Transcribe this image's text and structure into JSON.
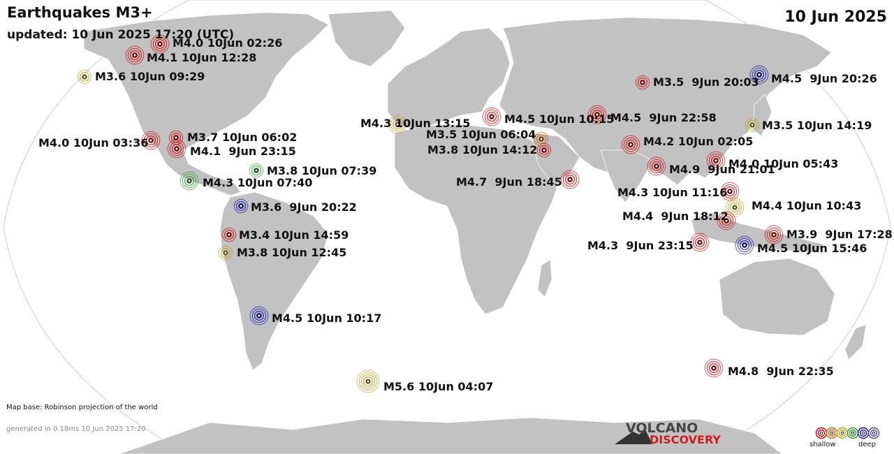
{
  "header": {
    "title": "Earthquakes M3+",
    "updated": "updated: 10 Jun 2025 17:20 (UTC)",
    "date": "10 Jun 2025"
  },
  "footer": {
    "map_base": "Map base: Robinson projection of the world",
    "generated": "generated in 0.18ms 10 Jun 2025 17:20",
    "logo_line1": "VOLCANO",
    "logo_line2": "DISCOVERY",
    "legend_shallow": "shallow",
    "legend_deep": "deep"
  },
  "colors": {
    "ocean": "#ffffff",
    "land": "#c2c2c2",
    "shallow": "#cc0000",
    "mid": "#b5a020",
    "green": "#2a9a2a",
    "deep": "#1010aa",
    "legend": [
      "#cc0000",
      "#d06010",
      "#b5a020",
      "#2a9a2a",
      "#1010aa",
      "#5040a0"
    ]
  },
  "earthquakes": [
    {
      "label": "M4.0 10Jun 02:26",
      "color": "#cc0000",
      "magnitude": 4.0
    },
    {
      "label": "M4.1 10Jun 12:28",
      "color": "#cc0000",
      "magnitude": 4.1
    },
    {
      "label": "M3.6 10Jun 09:29",
      "color": "#b5a020",
      "magnitude": 3.6
    },
    {
      "label": "M4.0 10Jun 03:36",
      "color": "#cc0000",
      "magnitude": 4.0
    },
    {
      "label": "M3.7 10Jun 06:02",
      "color": "#cc0000",
      "magnitude": 3.7
    },
    {
      "label": "M4.1  9Jun 23:15",
      "color": "#cc0000",
      "magnitude": 4.1
    },
    {
      "label": "M3.8 10Jun 07:39",
      "color": "#2a9a2a",
      "magnitude": 3.8
    },
    {
      "label": "M4.3 10Jun 07:40",
      "color": "#2a9a2a",
      "magnitude": 4.3
    },
    {
      "label": "M3.6  9Jun 20:22",
      "color": "#1010aa",
      "magnitude": 3.6
    },
    {
      "label": "M3.4 10Jun 14:59",
      "color": "#cc0000",
      "magnitude": 3.4
    },
    {
      "label": "M3.8 10Jun 12:45",
      "color": "#b5a020",
      "magnitude": 3.8
    },
    {
      "label": "M4.5 10Jun 10:17",
      "color": "#1010aa",
      "magnitude": 4.5
    },
    {
      "label": "M5.6 10Jun 04:07",
      "color": "#b5a020",
      "magnitude": 5.6
    },
    {
      "label": "M4.3 10Jun 13:15",
      "color": "#b5a020",
      "magnitude": 4.3
    },
    {
      "label": "M4.5 10Jun 10:15",
      "color": "#cc0000",
      "magnitude": 4.5
    },
    {
      "label": "M3.5 10Jun 06:04",
      "color": "#d06010",
      "magnitude": 3.5
    },
    {
      "label": "M3.8 10Jun 14:12",
      "color": "#cc0000",
      "magnitude": 3.8
    },
    {
      "label": "M4.7  9Jun 18:45",
      "color": "#cc0000",
      "magnitude": 4.7
    },
    {
      "label": "M4.5  9Jun 22:58",
      "color": "#cc0000",
      "magnitude": 4.5
    },
    {
      "label": "M3.5  9Jun 20:03",
      "color": "#cc0000",
      "magnitude": 3.5
    },
    {
      "label": "M4.5  9Jun 20:26",
      "color": "#1010aa",
      "magnitude": 4.5
    },
    {
      "label": "M3.5 10Jun 14:19",
      "color": "#b5a020",
      "magnitude": 3.5
    },
    {
      "label": "M4.2 10Jun 02:05",
      "color": "#cc0000",
      "magnitude": 4.2
    },
    {
      "label": "M4.9  9Jun 21:01",
      "color": "#cc0000",
      "magnitude": 4.9
    },
    {
      "label": "M4.0 10Jun 05:43",
      "color": "#cc0000",
      "magnitude": 4.0
    },
    {
      "label": "M4.3 10Jun 11:16",
      "color": "#cc0000",
      "magnitude": 4.3
    },
    {
      "label": "M4.4 10Jun 10:43",
      "color": "#b5a020",
      "magnitude": 4.4
    },
    {
      "label": "M4.4  9Jun 18:12",
      "color": "#cc0000",
      "magnitude": 4.4
    },
    {
      "label": "M3.9  9Jun 17:28",
      "color": "#cc0000",
      "magnitude": 3.9
    },
    {
      "label": "M4.3  9Jun 23:15",
      "color": "#cc0000",
      "magnitude": 4.3
    },
    {
      "label": "M4.5 10Jun 15:46",
      "color": "#1010aa",
      "magnitude": 4.5
    },
    {
      "label": "M4.8  9Jun 22:35",
      "color": "#cc0000",
      "magnitude": 4.8
    }
  ]
}
